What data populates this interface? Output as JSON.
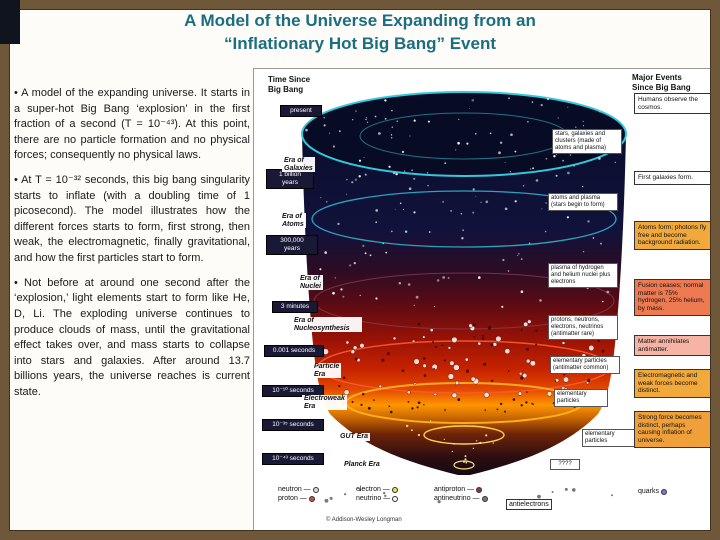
{
  "slide": {
    "title_line1": "A Model of the Universe Expanding from an",
    "title_line2": "“Inflationary Hot Big Bang” Event",
    "bullets": [
      "• A model of the expanding universe. It starts in a super-hot Big Bang ‘explosion’ in the first fraction of a second (T = 10⁻⁴³). At this point, there are no particle formation and no physical forces; consequently no physical laws.",
      "• At T = 10⁻³² seconds, this big bang singularity starts to inflate (with a doubling time of 1 picosecond). The model illustrates how the different forces starts to form, first strong, then weak, the electromagnetic, finally gravitational, and how the first particles start to form.",
      "• Not before at around one second after the ‘explosion,’ light elements start to form like He, D, Li. The exploding universe continues to produce clouds of mass, until the gravitational effect takes over, and mass starts to collapse into stars and galaxies. After around 13.7 billions years, the universe reaches is current state."
    ]
  },
  "diagram": {
    "header_left": "Time Since\nBig Bang",
    "header_right": "Major Events\nSince Big Bang",
    "times": [
      "present",
      "1 billion\nyears",
      "300,000\nyears",
      "3 minutes",
      "0.001 seconds",
      "10⁻¹⁰ seconds",
      "10⁻³⁵ seconds",
      "10⁻⁴³ seconds"
    ],
    "eras": [
      "Era of\nGalaxies",
      "Era of\nAtoms",
      "Era of\nNuclei",
      "Era of\nNucleosynthesis",
      "Particle\nEra",
      "Electroweak\nEra",
      "GUT Era",
      "Planck Era"
    ],
    "events": [
      "Humans observe the cosmos.",
      "First galaxies form.",
      "Atoms form; photons fly free and become background radiation.",
      "Fusion ceases; normal matter is 75% hydrogen, 25% helium, by mass.",
      "Matter annihilates antimatter.",
      "Electromagnetic and weak forces become distinct.",
      "Strong force becomes distinct, perhaps causing inflation of universe."
    ],
    "stage_labels": [
      "stars, galaxies and clusters (made of atoms and plasma)",
      "atoms and plasma (stars begin to form)",
      "plasma of hydrogen and helium nuclei plus electrons",
      "protons, neutrons, electrons, neutrinos (antimatter rare)",
      "elementary particles (antimatter common)",
      "elementary particles",
      "elementary particles",
      "????"
    ],
    "particles": [
      {
        "a": "neutron —",
        "b": "proton —"
      },
      {
        "a": "electron —",
        "b": "neutrino —"
      },
      {
        "a": "antiproton —",
        "b": "antineutrino —"
      },
      {
        "a": "antielectrons"
      },
      {
        "a": "quarks"
      }
    ],
    "credit": "© Addison-Wesley Longman"
  },
  "colors": {
    "title_teal": "#1a6e80",
    "frame_brown": "#6e5839",
    "timebox_bg": "#191936",
    "event_orange": "#f2a93b",
    "event_red_orange": "#ee7a52",
    "event_pink": "#f6b4a6",
    "ring_teal": "#35c8dc",
    "cone_red": "#c62200",
    "cone_orange": "#ff9500"
  }
}
